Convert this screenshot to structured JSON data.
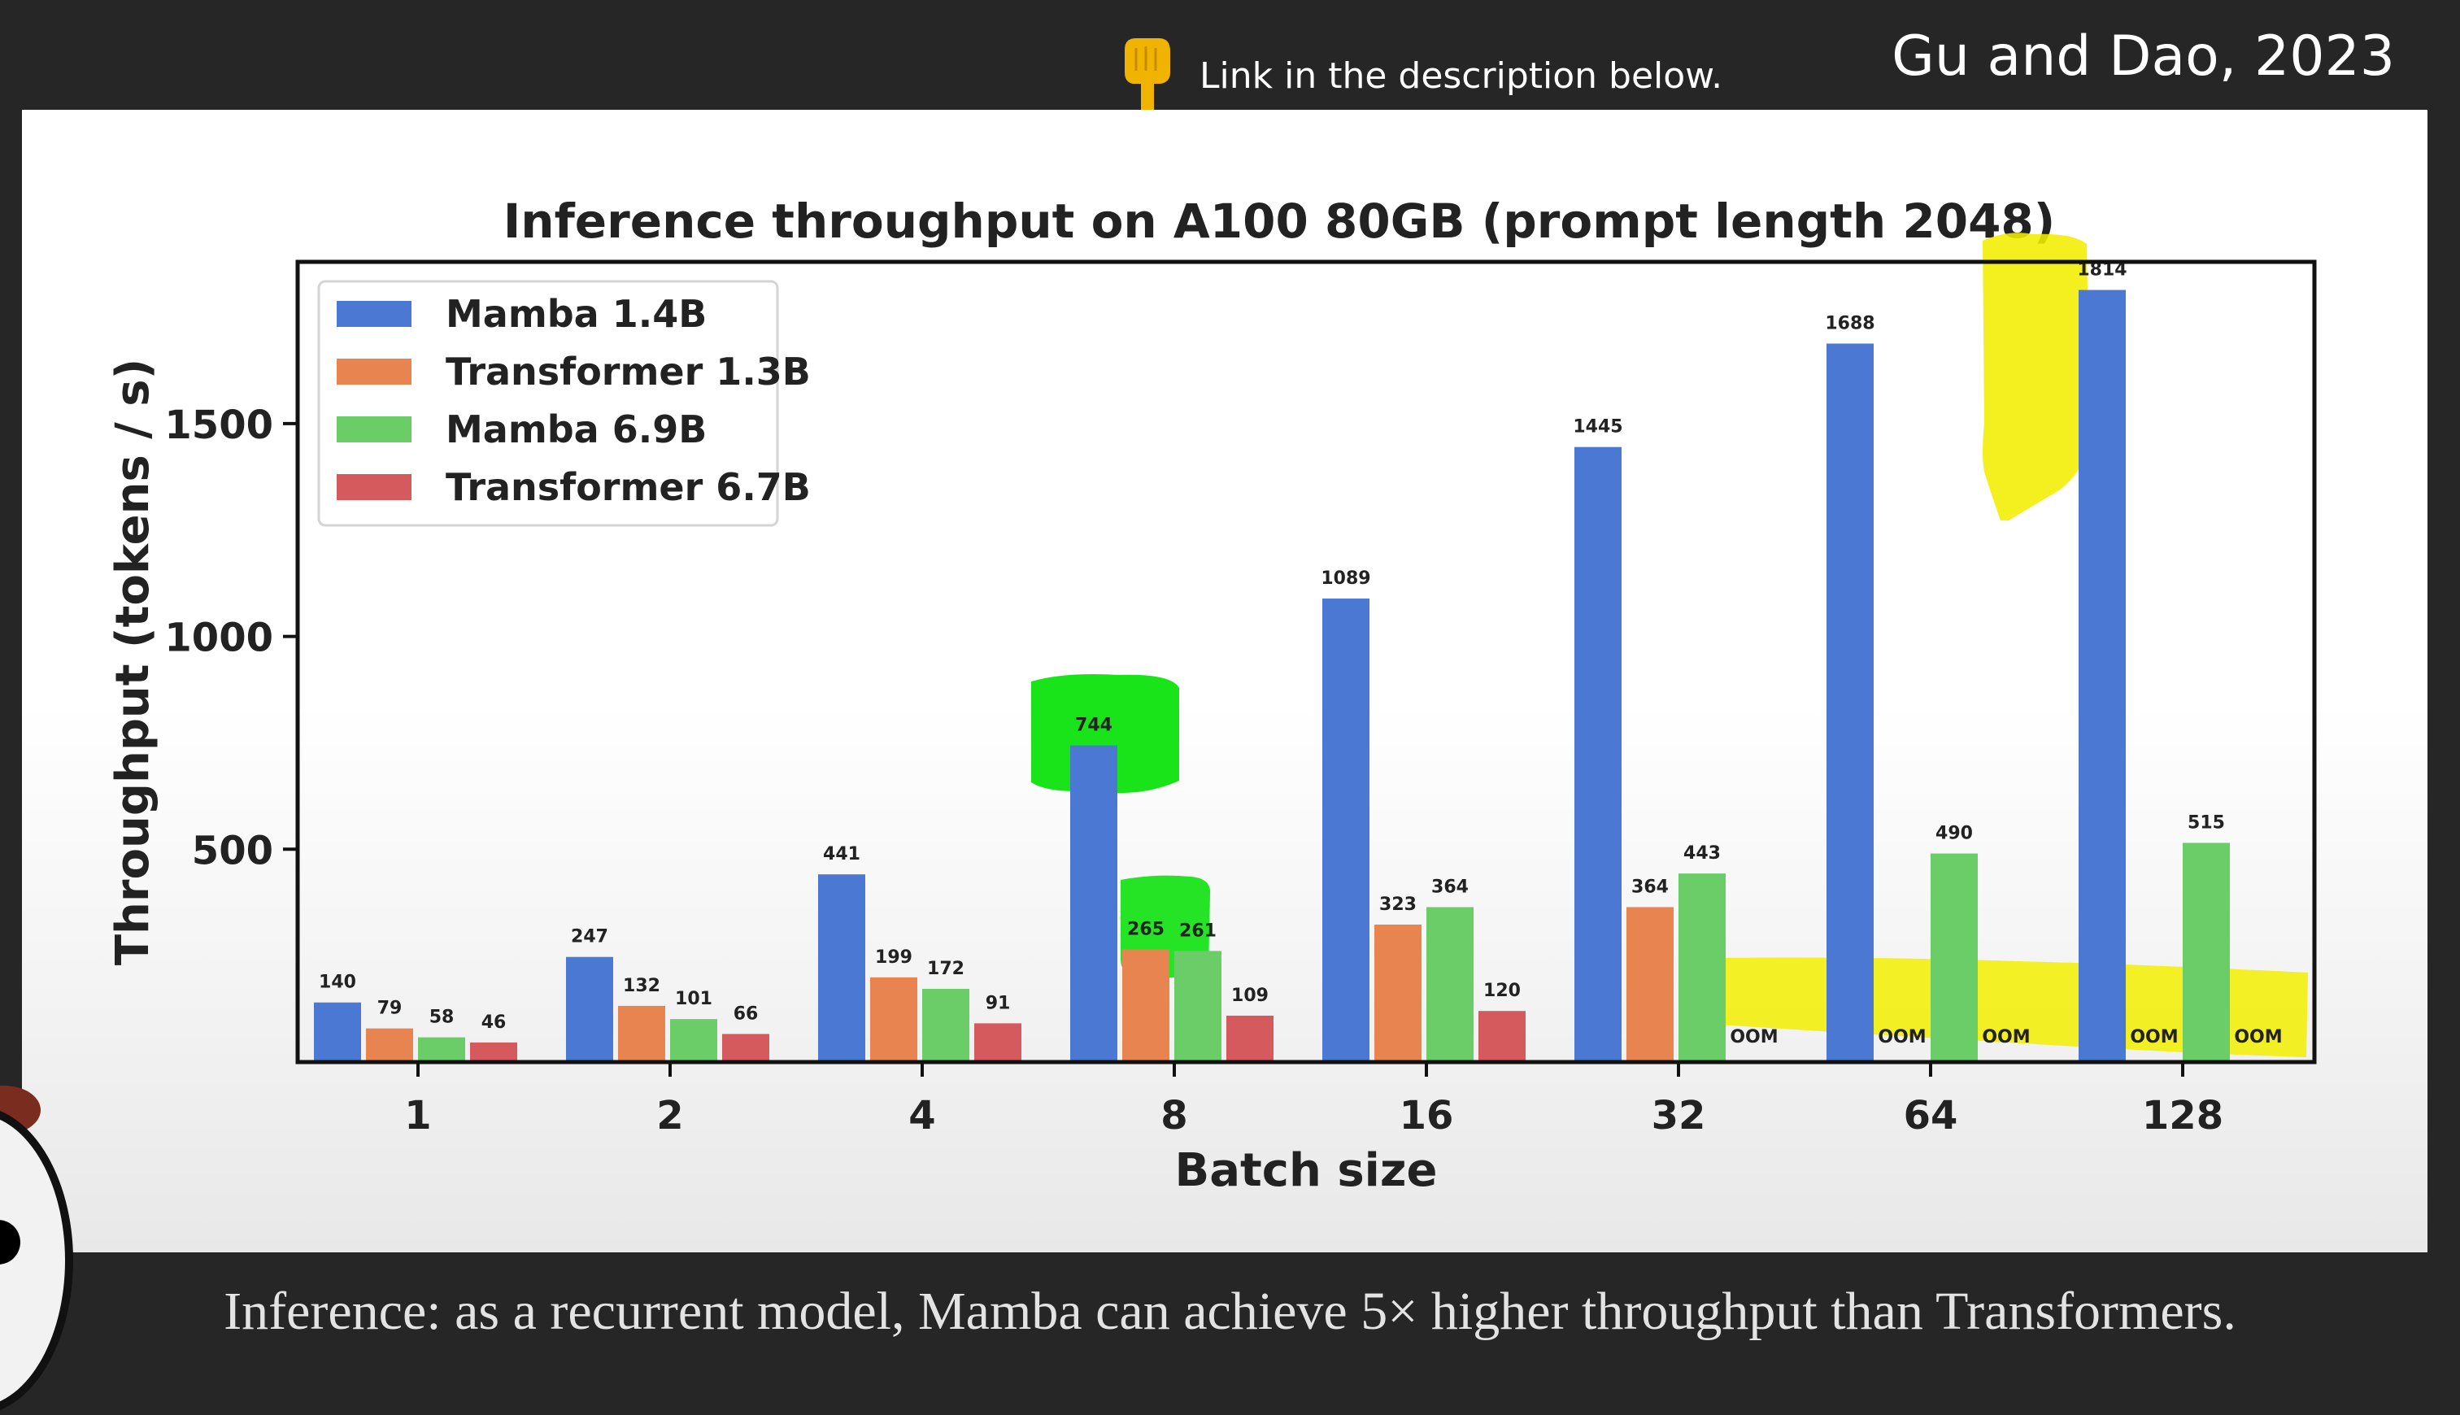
{
  "header": {
    "pointer_icon": "pointing-down-hand-icon",
    "link_note": "Link in the description below.",
    "citation": "Gu and Dao, 2023"
  },
  "caption": "Inference: as a recurrent model, Mamba can achieve 5× higher throughput than Transformers.",
  "colors": {
    "mamba_small": "#4a78d3",
    "transformer_small": "#e8844f",
    "mamba_large": "#6acd67",
    "transformer_large": "#d55a5e",
    "highlight_yellow": "#f2ee00",
    "highlight_green": "#00e000"
  },
  "chart_data": {
    "type": "bar",
    "title": "Inference throughput on A100 80GB (prompt length 2048)",
    "xlabel": "Batch size",
    "ylabel": "Throughput (tokens / s)",
    "ylim": [
      0,
      1880
    ],
    "yticks": [
      500,
      1000,
      1500
    ],
    "categories": [
      "1",
      "2",
      "4",
      "8",
      "16",
      "32",
      "64",
      "128"
    ],
    "legend_position": "top-left",
    "grid": false,
    "missing_label": "OOM",
    "series": [
      {
        "name": "Mamba 1.4B",
        "color": "#4a78d3",
        "values": [
          140,
          247,
          441,
          744,
          1089,
          1445,
          1688,
          1814
        ]
      },
      {
        "name": "Transformer 1.3B",
        "color": "#e8844f",
        "values": [
          79,
          132,
          199,
          265,
          323,
          364,
          null,
          null
        ]
      },
      {
        "name": "Mamba 6.9B",
        "color": "#6acd67",
        "values": [
          58,
          101,
          172,
          261,
          364,
          443,
          490,
          515
        ]
      },
      {
        "name": "Transformer 6.7B",
        "color": "#d55a5e",
        "values": [
          46,
          66,
          91,
          109,
          120,
          null,
          null,
          null
        ]
      }
    ]
  }
}
